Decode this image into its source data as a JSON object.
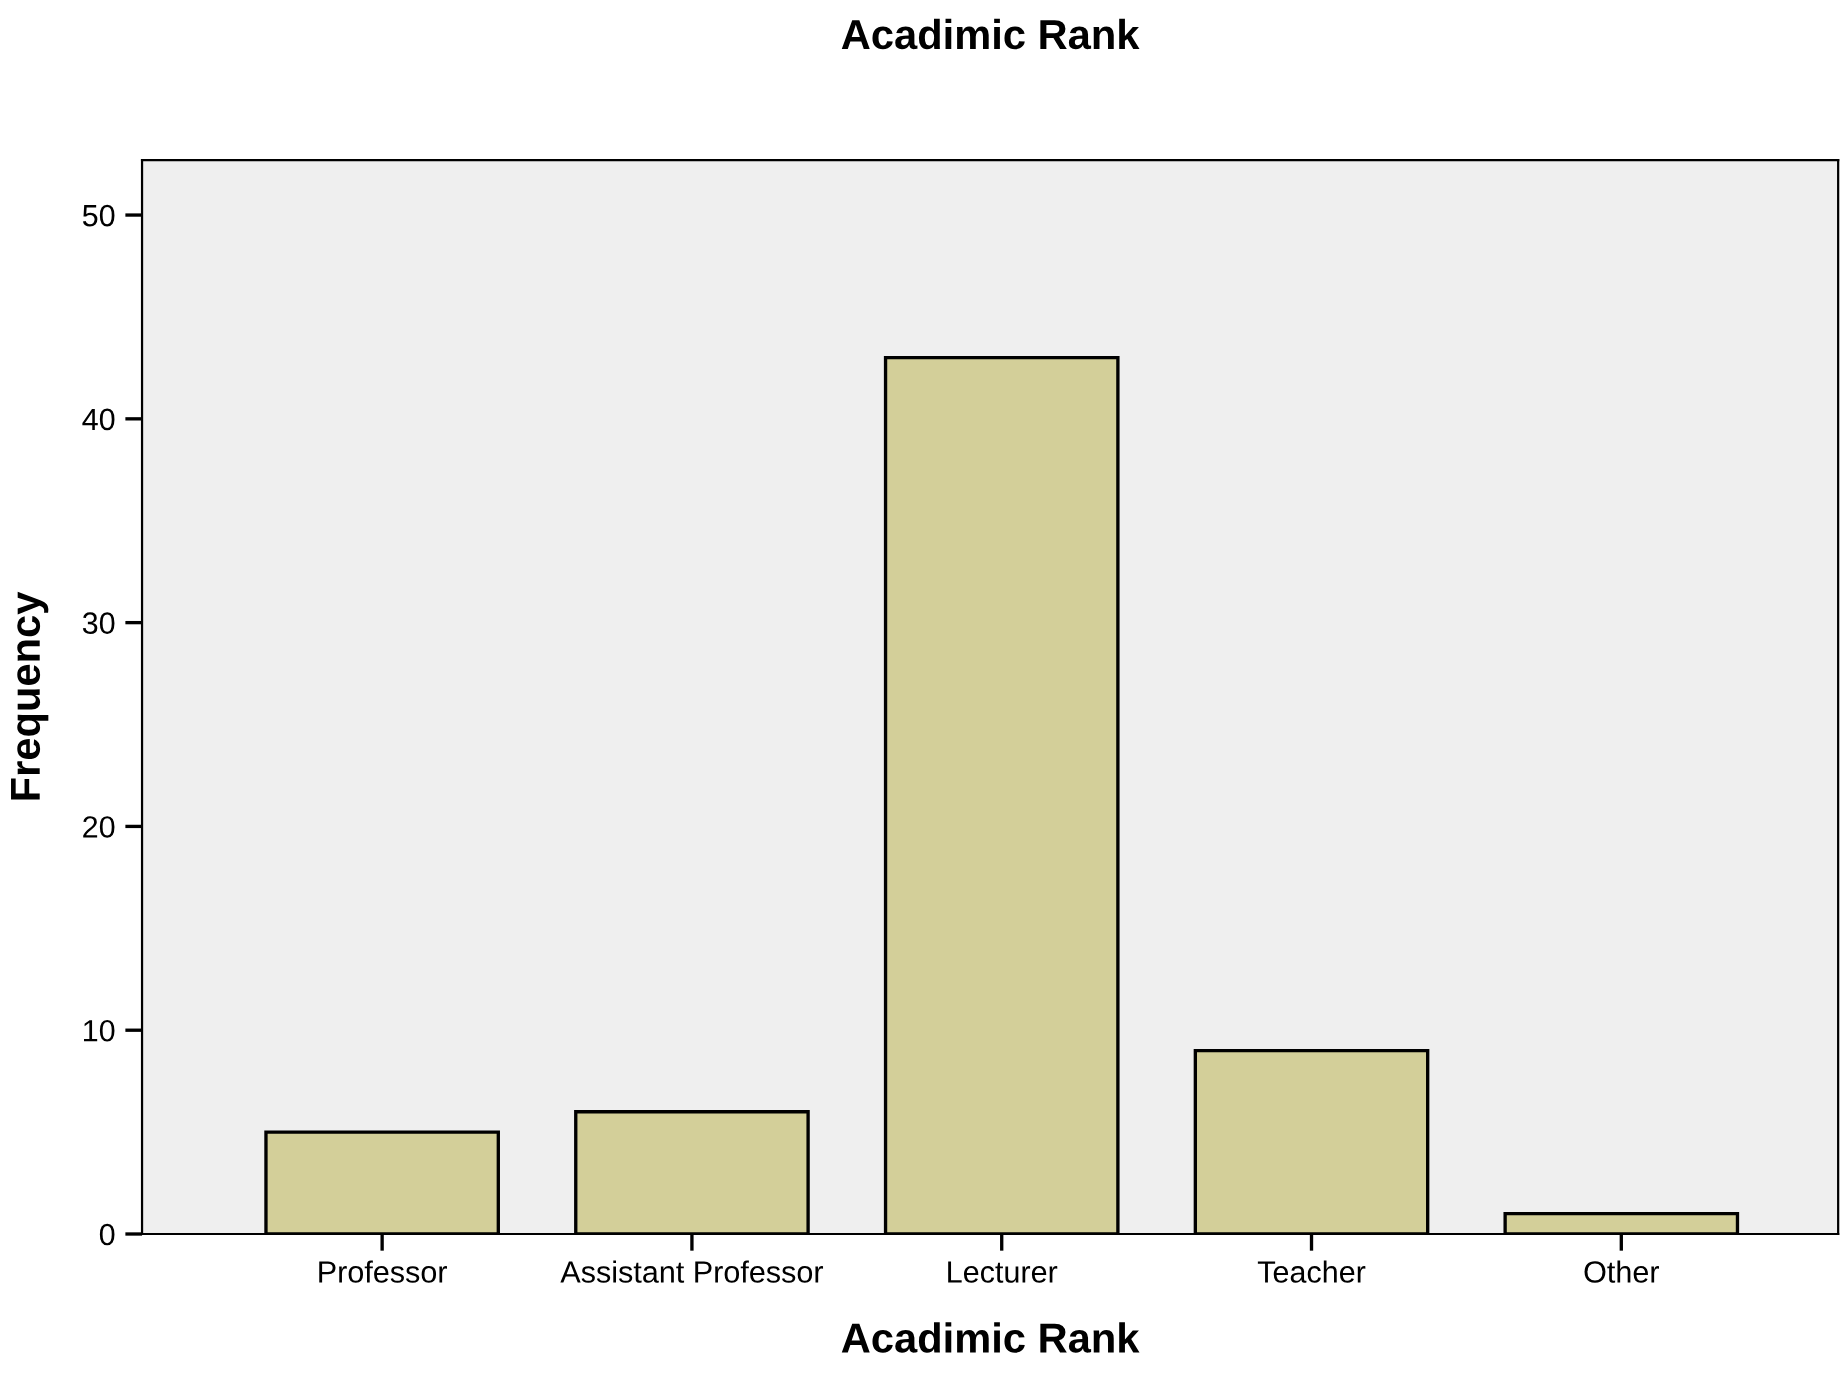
{
  "chart_data": {
    "type": "bar",
    "title": "Acadimic Rank",
    "xlabel": "Acadimic Rank",
    "ylabel": "Frequency",
    "categories": [
      "Professor",
      "Assistant Professor",
      "Lecturer",
      "Teacher",
      "Other"
    ],
    "values": [
      5,
      6,
      43,
      9,
      1
    ],
    "color": "#d3cf99",
    "ylim": [
      0,
      52.7
    ],
    "yticks": [
      0,
      10,
      20,
      30,
      40,
      50
    ],
    "grid": false,
    "legend": false
  }
}
